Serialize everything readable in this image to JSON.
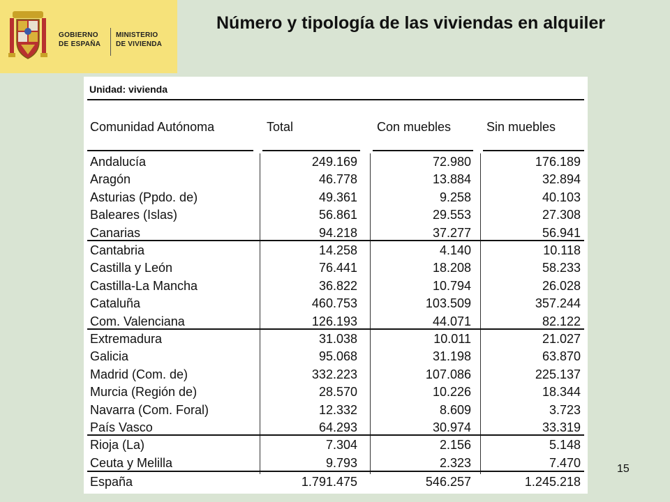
{
  "logo": {
    "org_line1": "GOBIERNO\nDE ESPAÑA",
    "org_line2": "MINISTERIO\nDE VIVIENDA"
  },
  "title": "Número y tipología de las viviendas en alquiler",
  "table": {
    "unit": "Unidad: vivienda",
    "headers": [
      "Comunidad Autónoma",
      "Total",
      "Con muebles",
      "Sin muebles"
    ],
    "rows": [
      [
        "Andalucía",
        "249.169",
        "72.980",
        "176.189"
      ],
      [
        "Aragón",
        "46.778",
        "13.884",
        "32.894"
      ],
      [
        "Asturias (Ppdo. de)",
        "49.361",
        "9.258",
        "40.103"
      ],
      [
        "Baleares (Islas)",
        "56.861",
        "29.553",
        "27.308"
      ],
      [
        "Canarias",
        "94.218",
        "37.277",
        "56.941"
      ],
      [
        "Cantabria",
        "14.258",
        "4.140",
        "10.118"
      ],
      [
        "Castilla y León",
        "76.441",
        "18.208",
        "58.233"
      ],
      [
        "Castilla-La Mancha",
        "36.822",
        "10.794",
        "26.028"
      ],
      [
        "Cataluña",
        "460.753",
        "103.509",
        "357.244"
      ],
      [
        "Com. Valenciana",
        "126.193",
        "44.071",
        "82.122"
      ],
      [
        "Extremadura",
        "31.038",
        "10.011",
        "21.027"
      ],
      [
        "Galicia",
        "95.068",
        "31.198",
        "63.870"
      ],
      [
        "Madrid (Com. de)",
        "332.223",
        "107.086",
        "225.137"
      ],
      [
        "Murcia (Región de)",
        "28.570",
        "10.226",
        "18.344"
      ],
      [
        "Navarra (Com. Foral)",
        "12.332",
        "8.609",
        "3.723"
      ],
      [
        "País Vasco",
        "64.293",
        "30.974",
        "33.319"
      ],
      [
        "Rioja (La)",
        "7.304",
        "2.156",
        "5.148"
      ],
      [
        "Ceuta y Melilla",
        "9.793",
        "2.323",
        "7.470"
      ]
    ],
    "total_row": [
      "España",
      "1.791.475",
      "546.257",
      "1.245.218"
    ]
  },
  "page_number": "15"
}
